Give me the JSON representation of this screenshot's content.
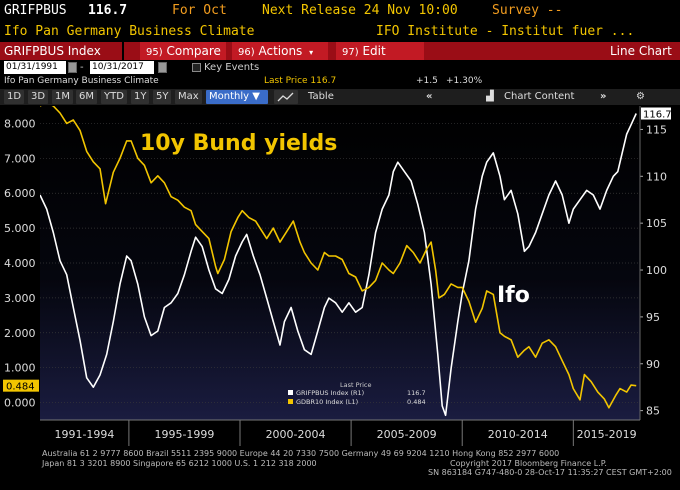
{
  "header": {
    "ticker": "GRIFPBUS",
    "price": "116.7",
    "period": "For Oct",
    "next_release": "Next Release 24 Nov 10:00",
    "survey": "Survey --",
    "name": "Ifo Pan Germany Business Climate",
    "source": "IFO Institute - Institut fuer ..."
  },
  "toolbar": {
    "security": "GRIFPBUS Index",
    "compare_num": "95)",
    "compare": "Compare",
    "actions_num": "96)",
    "actions": "Actions",
    "edit_num": "97)",
    "edit": "Edit",
    "view": "Line Chart"
  },
  "dates": {
    "start": "01/31/1991",
    "end": "10/31/2017",
    "key_events": "Key Events"
  },
  "info": {
    "title": "Ifo Pan Germany Business Climate",
    "last_price": "Last Price 116.7",
    "change": "+1.5",
    "change_pct": "+1.30%"
  },
  "tabs": {
    "periods": [
      "1D",
      "3D",
      "1M",
      "6M",
      "YTD",
      "1Y",
      "5Y",
      "Max"
    ],
    "frequency": "Monthly ▼",
    "table": "Table",
    "chart_content": "Chart Content"
  },
  "colors": {
    "ifo": "#ffffff",
    "bund": "#f2c500",
    "accent_red": "#9a0d16",
    "active_tab": "#3a6cc8"
  },
  "chart_data": {
    "type": "line",
    "annotations": [
      "10y Bund yields",
      "Ifo"
    ],
    "last_price_label": "Last Price",
    "legend": [
      {
        "name": "GRIFPBUS Index (R1)",
        "value": "116.7"
      },
      {
        "name": "GDBR10 Index (L1)",
        "value": "0.484"
      }
    ],
    "left_axis": {
      "ticks": [
        "8.000",
        "7.000",
        "6.000",
        "5.000",
        "4.000",
        "3.000",
        "2.000",
        "1.000",
        "0.000"
      ],
      "ylim": [
        -0.5,
        8.5
      ],
      "last": "0.484"
    },
    "right_axis": {
      "ticks": [
        "115",
        "110",
        "105",
        "100",
        "95",
        "90",
        "85"
      ],
      "ylim": [
        84,
        117.5
      ],
      "last": "116.7"
    },
    "x_labels": [
      "1991-1994",
      "1995-1999",
      "2000-2004",
      "2005-2009",
      "2010-2014",
      "2015-2019"
    ],
    "xlim": [
      1991.0,
      2018.0
    ],
    "series": [
      {
        "name": "GRIFPBUS Index",
        "axis": "right",
        "points": [
          [
            1991.0,
            108.0
          ],
          [
            1991.3,
            106.5
          ],
          [
            1991.6,
            104.0
          ],
          [
            1991.9,
            101.0
          ],
          [
            1992.2,
            99.5
          ],
          [
            1992.5,
            96.0
          ],
          [
            1992.8,
            92.5
          ],
          [
            1993.1,
            88.5
          ],
          [
            1993.4,
            87.5
          ],
          [
            1993.7,
            88.8
          ],
          [
            1994.0,
            91.0
          ],
          [
            1994.3,
            94.5
          ],
          [
            1994.6,
            98.5
          ],
          [
            1994.9,
            101.5
          ],
          [
            1995.1,
            101.0
          ],
          [
            1995.4,
            98.5
          ],
          [
            1995.7,
            95.0
          ],
          [
            1996.0,
            93.0
          ],
          [
            1996.3,
            93.5
          ],
          [
            1996.6,
            96.0
          ],
          [
            1996.9,
            96.5
          ],
          [
            1997.2,
            97.5
          ],
          [
            1997.5,
            99.5
          ],
          [
            1997.8,
            102.0
          ],
          [
            1998.0,
            103.5
          ],
          [
            1998.3,
            102.5
          ],
          [
            1998.6,
            100.0
          ],
          [
            1998.9,
            98.0
          ],
          [
            1999.2,
            97.5
          ],
          [
            1999.5,
            99.0
          ],
          [
            1999.8,
            101.5
          ],
          [
            2000.1,
            103.0
          ],
          [
            2000.3,
            103.8
          ],
          [
            2000.6,
            101.5
          ],
          [
            2000.9,
            99.5
          ],
          [
            2001.2,
            97.0
          ],
          [
            2001.5,
            94.5
          ],
          [
            2001.8,
            92.0
          ],
          [
            2002.0,
            94.5
          ],
          [
            2002.3,
            96.0
          ],
          [
            2002.6,
            93.5
          ],
          [
            2002.9,
            91.5
          ],
          [
            2003.2,
            91.0
          ],
          [
            2003.5,
            93.5
          ],
          [
            2003.8,
            96.0
          ],
          [
            2004.0,
            97.0
          ],
          [
            2004.3,
            96.5
          ],
          [
            2004.6,
            95.5
          ],
          [
            2004.9,
            96.5
          ],
          [
            2005.2,
            95.5
          ],
          [
            2005.5,
            96.0
          ],
          [
            2005.8,
            99.5
          ],
          [
            2006.1,
            104.0
          ],
          [
            2006.4,
            106.5
          ],
          [
            2006.7,
            108.0
          ],
          [
            2006.9,
            110.5
          ],
          [
            2007.1,
            111.5
          ],
          [
            2007.4,
            110.5
          ],
          [
            2007.7,
            109.5
          ],
          [
            2008.0,
            107.0
          ],
          [
            2008.3,
            104.0
          ],
          [
            2008.6,
            98.5
          ],
          [
            2008.9,
            91.0
          ],
          [
            2009.1,
            85.5
          ],
          [
            2009.25,
            84.5
          ],
          [
            2009.5,
            89.5
          ],
          [
            2009.8,
            94.5
          ],
          [
            2010.0,
            97.5
          ],
          [
            2010.3,
            101.0
          ],
          [
            2010.6,
            106.5
          ],
          [
            2010.9,
            110.0
          ],
          [
            2011.1,
            111.5
          ],
          [
            2011.4,
            112.5
          ],
          [
            2011.7,
            110.0
          ],
          [
            2011.9,
            107.5
          ],
          [
            2012.2,
            108.5
          ],
          [
            2012.5,
            106.0
          ],
          [
            2012.8,
            102.0
          ],
          [
            2013.0,
            102.5
          ],
          [
            2013.3,
            104.0
          ],
          [
            2013.6,
            106.0
          ],
          [
            2013.9,
            108.0
          ],
          [
            2014.2,
            109.5
          ],
          [
            2014.5,
            108.0
          ],
          [
            2014.8,
            105.0
          ],
          [
            2015.0,
            106.5
          ],
          [
            2015.3,
            107.5
          ],
          [
            2015.6,
            108.5
          ],
          [
            2015.9,
            108.0
          ],
          [
            2016.2,
            106.5
          ],
          [
            2016.5,
            108.5
          ],
          [
            2016.8,
            110.0
          ],
          [
            2017.0,
            110.5
          ],
          [
            2017.2,
            112.5
          ],
          [
            2017.4,
            114.5
          ],
          [
            2017.6,
            115.5
          ],
          [
            2017.83,
            116.7
          ]
        ]
      },
      {
        "name": "GDBR10 Index",
        "axis": "left",
        "points": [
          [
            1991.0,
            8.5
          ],
          [
            1991.3,
            8.6
          ],
          [
            1991.6,
            8.5
          ],
          [
            1991.9,
            8.3
          ],
          [
            1992.2,
            8.0
          ],
          [
            1992.5,
            8.1
          ],
          [
            1992.8,
            7.8
          ],
          [
            1993.1,
            7.2
          ],
          [
            1993.4,
            6.9
          ],
          [
            1993.7,
            6.7
          ],
          [
            1993.95,
            5.7
          ],
          [
            1994.3,
            6.6
          ],
          [
            1994.6,
            7.0
          ],
          [
            1994.9,
            7.5
          ],
          [
            1995.1,
            7.5
          ],
          [
            1995.4,
            7.0
          ],
          [
            1995.7,
            6.8
          ],
          [
            1996.0,
            6.3
          ],
          [
            1996.3,
            6.5
          ],
          [
            1996.6,
            6.3
          ],
          [
            1996.9,
            5.9
          ],
          [
            1997.2,
            5.8
          ],
          [
            1997.5,
            5.6
          ],
          [
            1997.8,
            5.5
          ],
          [
            1998.0,
            5.1
          ],
          [
            1998.3,
            4.9
          ],
          [
            1998.6,
            4.7
          ],
          [
            1998.9,
            3.9
          ],
          [
            1999.0,
            3.7
          ],
          [
            1999.3,
            4.1
          ],
          [
            1999.6,
            4.9
          ],
          [
            1999.9,
            5.3
          ],
          [
            2000.1,
            5.5
          ],
          [
            2000.4,
            5.3
          ],
          [
            2000.7,
            5.2
          ],
          [
            2000.9,
            5.0
          ],
          [
            2001.2,
            4.7
          ],
          [
            2001.5,
            5.0
          ],
          [
            2001.8,
            4.6
          ],
          [
            2002.1,
            4.9
          ],
          [
            2002.4,
            5.2
          ],
          [
            2002.7,
            4.6
          ],
          [
            2002.9,
            4.3
          ],
          [
            2003.2,
            4.0
          ],
          [
            2003.5,
            3.8
          ],
          [
            2003.8,
            4.3
          ],
          [
            2004.0,
            4.2
          ],
          [
            2004.3,
            4.2
          ],
          [
            2004.6,
            4.1
          ],
          [
            2004.9,
            3.7
          ],
          [
            2005.2,
            3.6
          ],
          [
            2005.5,
            3.2
          ],
          [
            2005.8,
            3.3
          ],
          [
            2006.1,
            3.5
          ],
          [
            2006.4,
            4.0
          ],
          [
            2006.7,
            3.8
          ],
          [
            2006.9,
            3.7
          ],
          [
            2007.2,
            4.0
          ],
          [
            2007.5,
            4.5
          ],
          [
            2007.8,
            4.3
          ],
          [
            2008.1,
            4.0
          ],
          [
            2008.4,
            4.4
          ],
          [
            2008.6,
            4.6
          ],
          [
            2008.8,
            3.8
          ],
          [
            2008.95,
            3.0
          ],
          [
            2009.2,
            3.1
          ],
          [
            2009.5,
            3.4
          ],
          [
            2009.8,
            3.3
          ],
          [
            2010.0,
            3.3
          ],
          [
            2010.3,
            2.9
          ],
          [
            2010.6,
            2.3
          ],
          [
            2010.9,
            2.7
          ],
          [
            2011.1,
            3.2
          ],
          [
            2011.4,
            3.1
          ],
          [
            2011.7,
            2.0
          ],
          [
            2011.9,
            1.9
          ],
          [
            2012.2,
            1.8
          ],
          [
            2012.5,
            1.3
          ],
          [
            2012.8,
            1.5
          ],
          [
            2013.0,
            1.6
          ],
          [
            2013.3,
            1.3
          ],
          [
            2013.6,
            1.7
          ],
          [
            2013.9,
            1.8
          ],
          [
            2014.2,
            1.6
          ],
          [
            2014.5,
            1.2
          ],
          [
            2014.8,
            0.8
          ],
          [
            2015.0,
            0.4
          ],
          [
            2015.3,
            0.08
          ],
          [
            2015.5,
            0.8
          ],
          [
            2015.8,
            0.6
          ],
          [
            2016.1,
            0.3
          ],
          [
            2016.4,
            0.1
          ],
          [
            2016.6,
            -0.15
          ],
          [
            2016.9,
            0.2
          ],
          [
            2017.1,
            0.4
          ],
          [
            2017.4,
            0.3
          ],
          [
            2017.6,
            0.5
          ],
          [
            2017.83,
            0.484
          ]
        ]
      }
    ]
  },
  "footer": {
    "line1": "Australia 61 2 9777 8600 Brazil 5511 2395 9000 Europe 44 20 7330 7500 Germany 49 69 9204 1210 Hong Kong 852 2977 6000",
    "line2a": "Japan 81 3 3201 8900        Singapore 65 6212 1000        U.S. 1 212 318 2000",
    "line2b": "Copyright 2017 Bloomberg Finance L.P.",
    "line3": "SN 863184 G747-480-0 28-Oct-17 11:35:27 CEST GMT+2:00"
  }
}
